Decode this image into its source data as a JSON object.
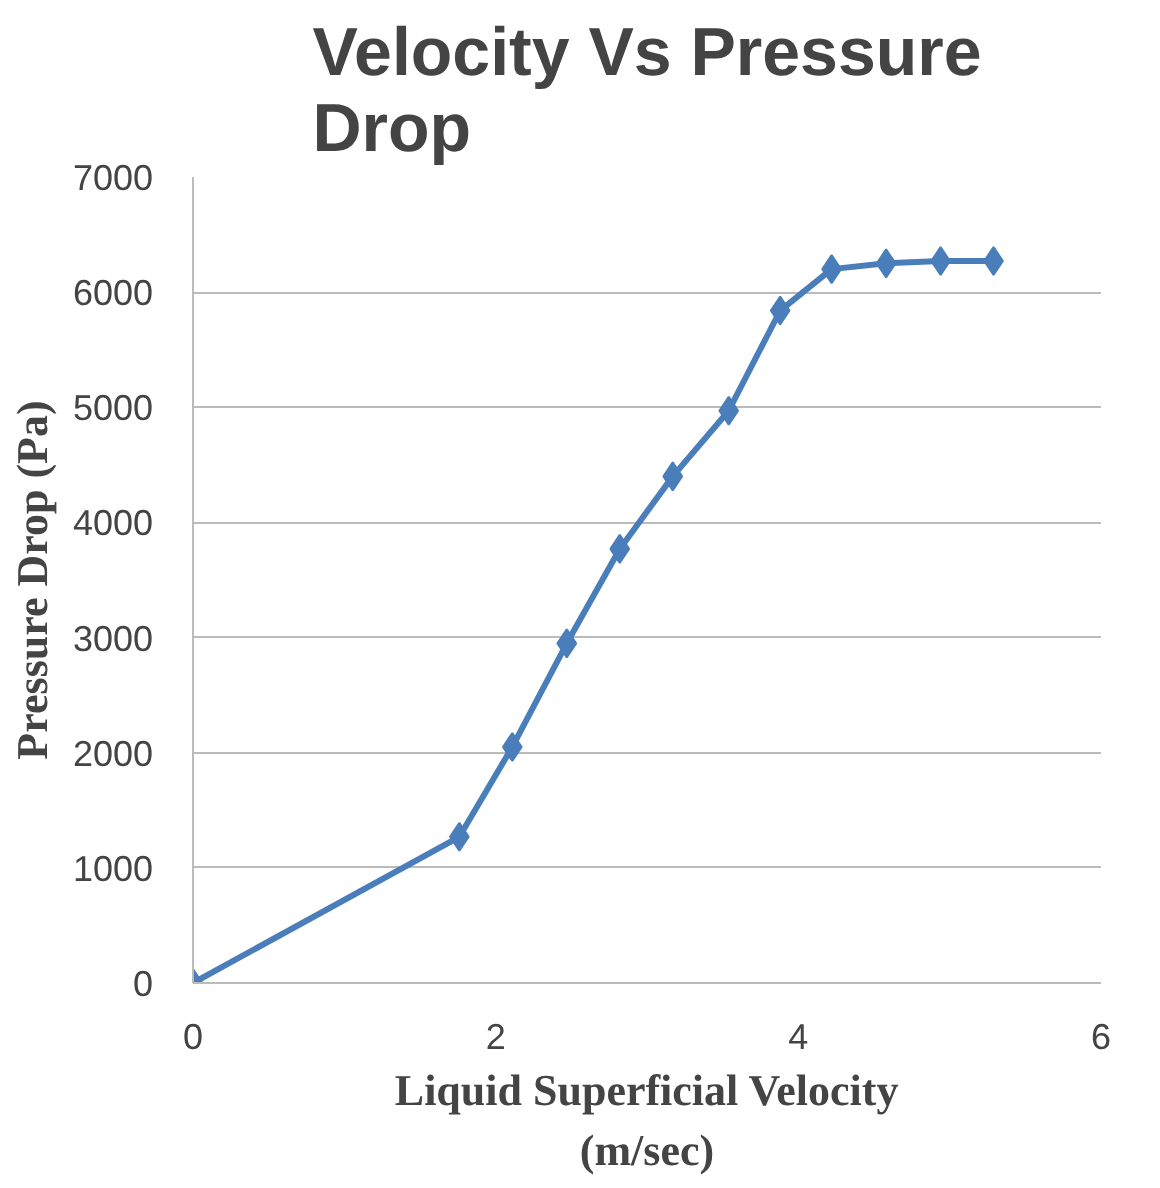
{
  "chart_data": {
    "type": "line",
    "title": "Velocity Vs Pressure Drop",
    "xlabel": "Liquid Superficial Velocity (m/sec)",
    "ylabel": "Pressure Drop (Pa)",
    "x": [
      0,
      1.76,
      2.11,
      2.47,
      2.82,
      3.17,
      3.54,
      3.88,
      4.22,
      4.58,
      4.94,
      5.29
    ],
    "series": [
      {
        "color": "#4a7ebb",
        "values": [
          0,
          1270,
          2050,
          2950,
          3770,
          4400,
          4970,
          5840,
          6200,
          6250,
          6270,
          6270
        ]
      }
    ],
    "xlim": [
      0,
      6
    ],
    "xticks": [
      0,
      2,
      4,
      6
    ],
    "ylim": [
      0,
      7000
    ],
    "yticks": [
      0,
      1000,
      2000,
      3000,
      4000,
      5000,
      6000,
      7000
    ],
    "grid": "y",
    "marker": "diamond",
    "line_style": "solid"
  }
}
